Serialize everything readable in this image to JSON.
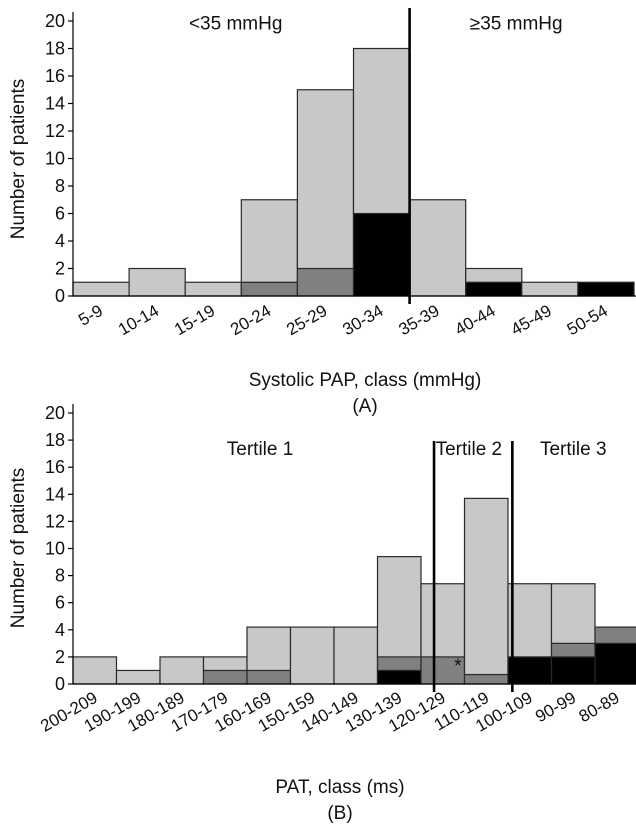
{
  "colors": {
    "light": "#c8c8c8",
    "mid": "#808080",
    "dark": "#000000",
    "edge": "#2a2a2a"
  },
  "chart_data": [
    {
      "type": "bar",
      "stacked": true,
      "panel_label": "(A)",
      "xlabel": "Systolic PAP, class (mmHg)",
      "ylabel": "Number of patients",
      "ylim": [
        0,
        20
      ],
      "yticks": [
        0,
        2,
        4,
        6,
        8,
        10,
        12,
        14,
        16,
        18,
        20
      ],
      "categories": [
        "5-9",
        "10-14",
        "15-19",
        "20-24",
        "25-29",
        "30-34",
        "35-39",
        "40-44",
        "45-49",
        "50-54"
      ],
      "series": [
        {
          "color_key": "dark",
          "values": [
            0,
            0,
            0,
            0,
            0,
            6,
            0,
            1,
            0,
            1
          ]
        },
        {
          "color_key": "mid",
          "values": [
            0,
            0,
            0,
            1,
            2,
            0,
            0,
            0,
            0,
            0
          ]
        },
        {
          "color_key": "light",
          "values": [
            1,
            2,
            1,
            6,
            13,
            12,
            7,
            1,
            1,
            0
          ]
        }
      ],
      "dividers": [
        6
      ],
      "annotations": [
        {
          "text": "<35 mmHg",
          "at": 2.9,
          "y": 19.4
        },
        {
          "text": "≥35 mmHg",
          "at": 7.9,
          "y": 19.4
        }
      ]
    },
    {
      "type": "bar",
      "stacked": true,
      "panel_label": "(B)",
      "xlabel": "PAT, class (ms)",
      "ylabel": "Number of patients",
      "ylim": [
        0,
        20
      ],
      "yticks": [
        0,
        2,
        4,
        6,
        8,
        10,
        12,
        14,
        16,
        18,
        20
      ],
      "categories": [
        "200-209",
        "190-199",
        "180-189",
        "170-179",
        "160-169",
        "150-159",
        "140-149",
        "130-139",
        "120-129",
        "110-119",
        "100-109",
        "90-99",
        "80-89"
      ],
      "series": [
        {
          "color_key": "dark",
          "values": [
            0,
            0,
            0,
            0,
            0,
            0,
            0,
            1,
            0,
            0,
            2,
            2,
            3
          ]
        },
        {
          "color_key": "mid",
          "values": [
            0,
            0,
            0,
            1,
            1,
            0,
            0,
            1,
            2,
            0.7,
            0,
            1,
            1.2
          ]
        },
        {
          "color_key": "light",
          "values": [
            2,
            1,
            2,
            1,
            3.2,
            4.2,
            4.2,
            7.4,
            5.4,
            13,
            5.4,
            4.4,
            0
          ]
        }
      ],
      "dividers": [
        8.3,
        10.1
      ],
      "annotations": [
        {
          "text": "Tertile 1",
          "at": 4.3,
          "y": 16.9
        },
        {
          "text": "Tertile 2",
          "at": 9.1,
          "y": 16.9
        },
        {
          "text": "Tertile 3",
          "at": 11.5,
          "y": 16.9
        },
        {
          "text": "*",
          "at": 8.85,
          "y": 0.9
        }
      ]
    }
  ]
}
